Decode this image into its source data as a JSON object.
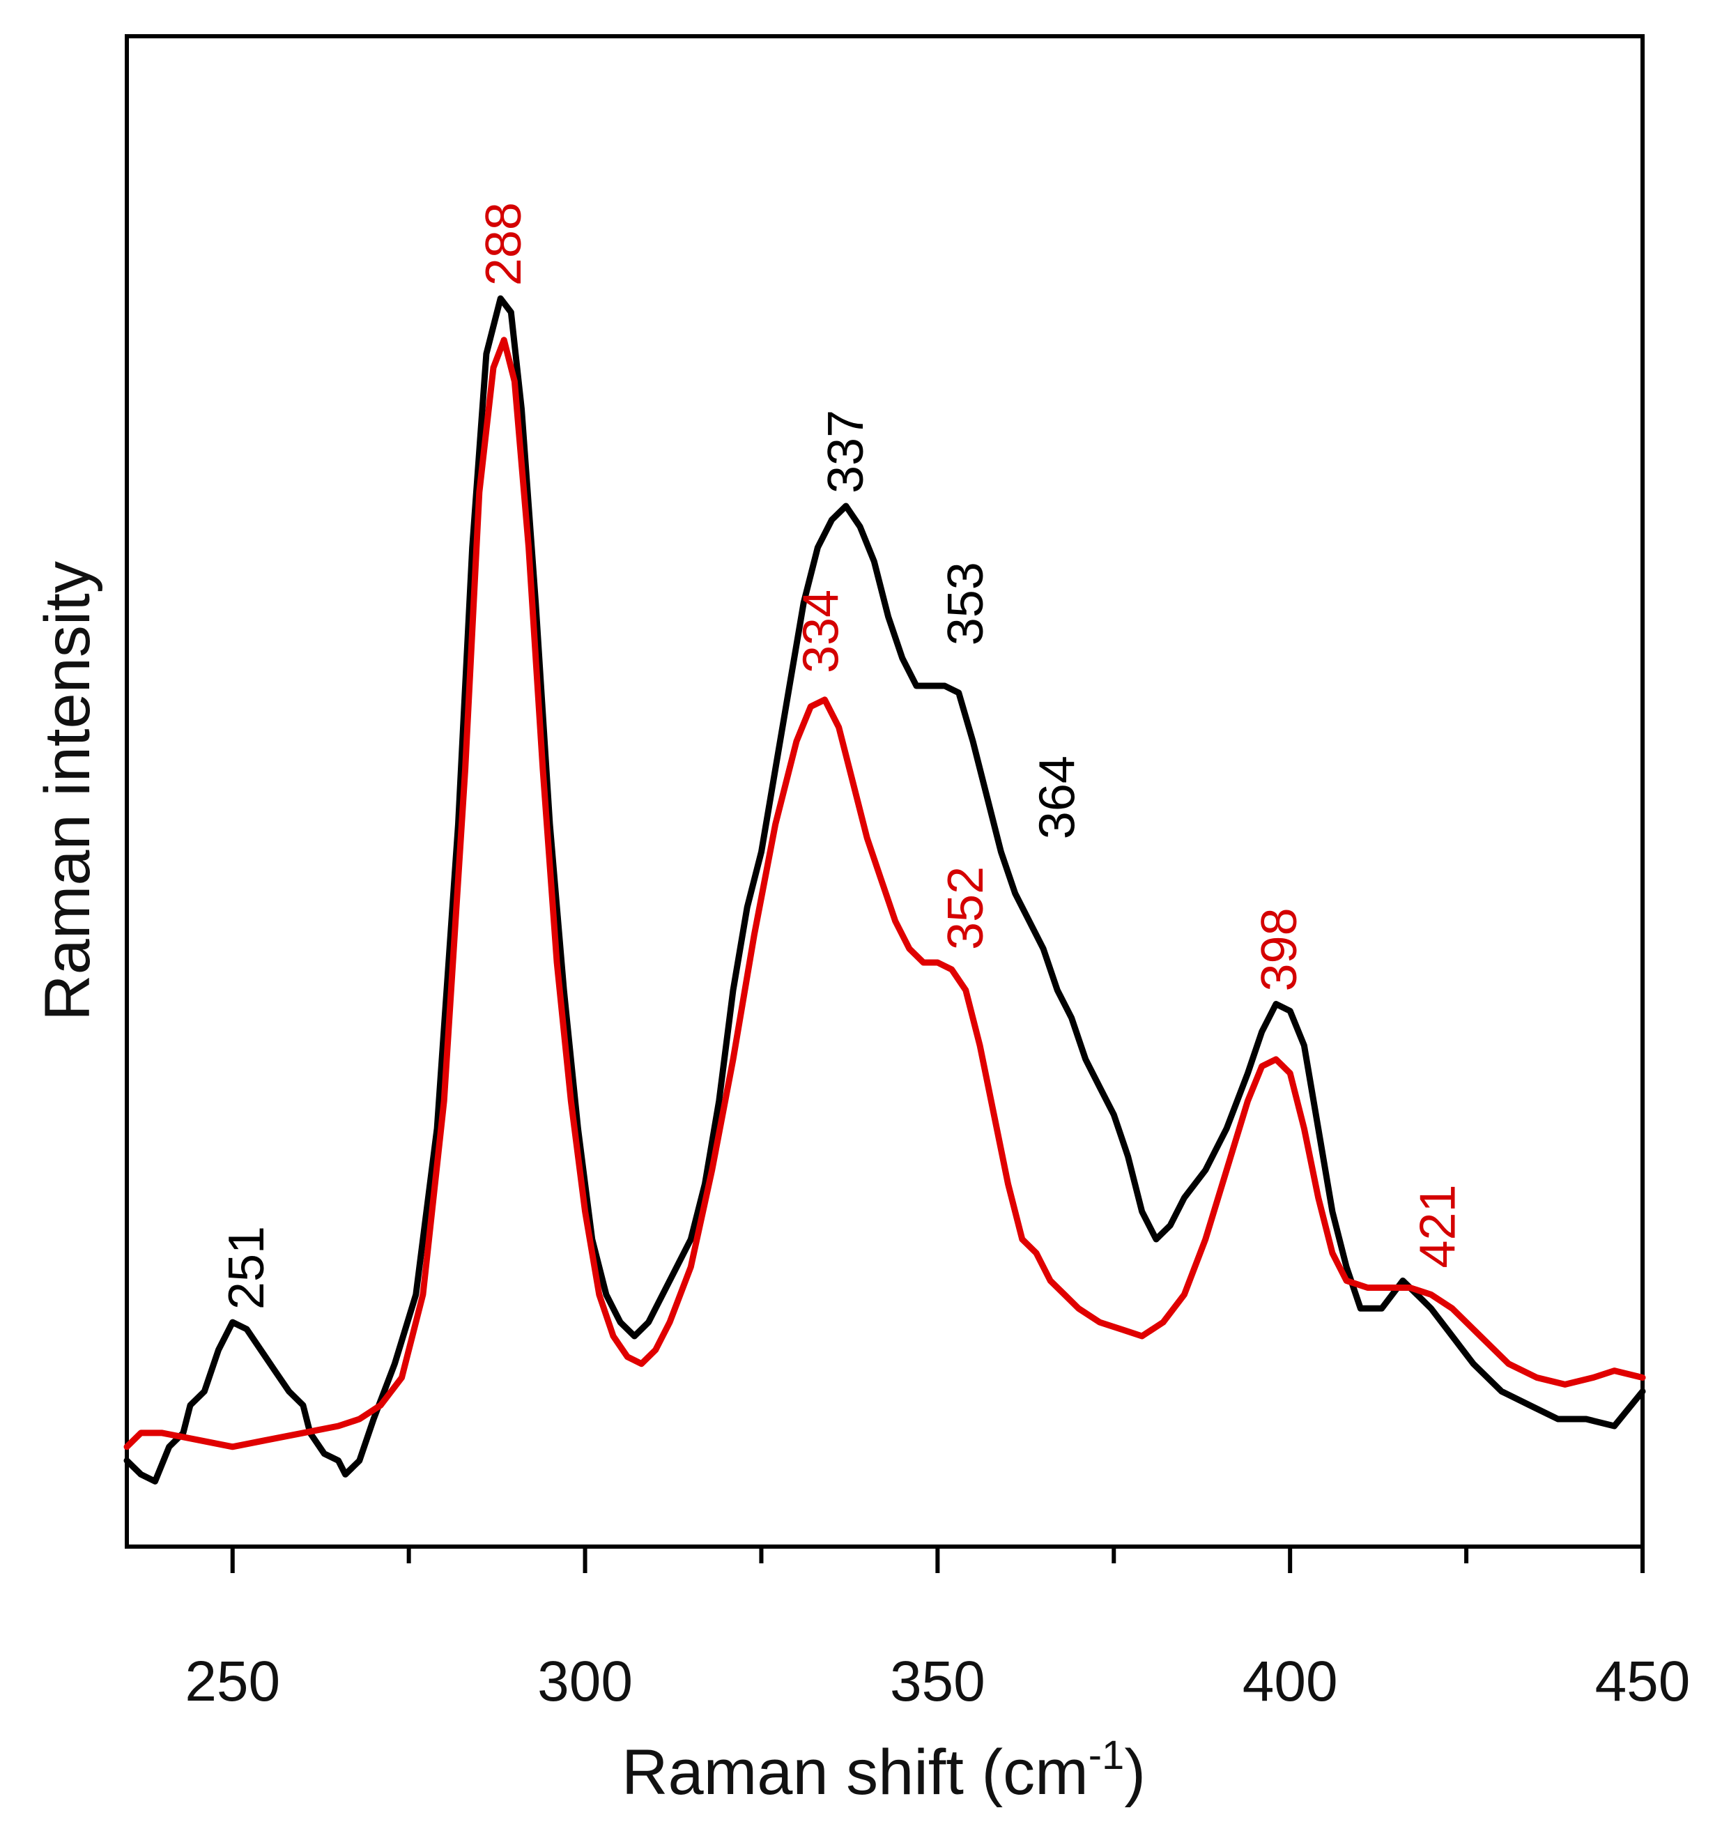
{
  "chart_data": {
    "type": "line",
    "title": "",
    "xlabel": "Raman shift (cm",
    "xlabel_sup": "-1",
    "xlabel_close": ")",
    "ylabel": "Raman intensity",
    "xlim": [
      235,
      450
    ],
    "ylim": [
      0,
      100
    ],
    "x_ticks": [
      250,
      300,
      350,
      400,
      450
    ],
    "x_tick_labels": [
      "250",
      "300",
      "350",
      "400",
      "450"
    ],
    "x_minor_ticks": [
      275,
      325,
      375,
      425
    ],
    "y_ticks": [],
    "grid": false,
    "legend": "none",
    "series": [
      {
        "name": "black spectrum",
        "color": "#000000",
        "points": [
          [
            235,
            4
          ],
          [
            237,
            3
          ],
          [
            239,
            2.5
          ],
          [
            241,
            5
          ],
          [
            243,
            6
          ],
          [
            244,
            8
          ],
          [
            246,
            9
          ],
          [
            248,
            12
          ],
          [
            250,
            14
          ],
          [
            252,
            13.5
          ],
          [
            254,
            12
          ],
          [
            256,
            10.5
          ],
          [
            258,
            9
          ],
          [
            260,
            8
          ],
          [
            261,
            6
          ],
          [
            263,
            4.5
          ],
          [
            265,
            4
          ],
          [
            266,
            3
          ],
          [
            268,
            4
          ],
          [
            270,
            7
          ],
          [
            273,
            11
          ],
          [
            276,
            16
          ],
          [
            279,
            28
          ],
          [
            282,
            50
          ],
          [
            284,
            70
          ],
          [
            286,
            84
          ],
          [
            288,
            88
          ],
          [
            289.5,
            87
          ],
          [
            291,
            80
          ],
          [
            293,
            66
          ],
          [
            295,
            50
          ],
          [
            297,
            38
          ],
          [
            299,
            28
          ],
          [
            301,
            20
          ],
          [
            303,
            16
          ],
          [
            305,
            14
          ],
          [
            307,
            13
          ],
          [
            309,
            14
          ],
          [
            311,
            16
          ],
          [
            313,
            18
          ],
          [
            315,
            20
          ],
          [
            317,
            24
          ],
          [
            319,
            30
          ],
          [
            321,
            38
          ],
          [
            323,
            44
          ],
          [
            325,
            48
          ],
          [
            327,
            54
          ],
          [
            329,
            60
          ],
          [
            331,
            66
          ],
          [
            333,
            70
          ],
          [
            335,
            72
          ],
          [
            337,
            73
          ],
          [
            339,
            71.5
          ],
          [
            341,
            69
          ],
          [
            343,
            65
          ],
          [
            345,
            62
          ],
          [
            347,
            60
          ],
          [
            349,
            60
          ],
          [
            351,
            60
          ],
          [
            353,
            59.5
          ],
          [
            355,
            56
          ],
          [
            357,
            52
          ],
          [
            359,
            48
          ],
          [
            361,
            45
          ],
          [
            363,
            43
          ],
          [
            365,
            41
          ],
          [
            367,
            38
          ],
          [
            369,
            36
          ],
          [
            371,
            33
          ],
          [
            373,
            31
          ],
          [
            375,
            29
          ],
          [
            377,
            26
          ],
          [
            379,
            22
          ],
          [
            381,
            20
          ],
          [
            383,
            21
          ],
          [
            385,
            23
          ],
          [
            388,
            25
          ],
          [
            391,
            28
          ],
          [
            394,
            32
          ],
          [
            396,
            35
          ],
          [
            398,
            37
          ],
          [
            400,
            36.5
          ],
          [
            402,
            34
          ],
          [
            404,
            28
          ],
          [
            406,
            22
          ],
          [
            408,
            18
          ],
          [
            410,
            15
          ],
          [
            413,
            15
          ],
          [
            416,
            17
          ],
          [
            418,
            16
          ],
          [
            420,
            15
          ],
          [
            423,
            13
          ],
          [
            426,
            11
          ],
          [
            430,
            9
          ],
          [
            434,
            8
          ],
          [
            438,
            7
          ],
          [
            442,
            7
          ],
          [
            446,
            6.5
          ],
          [
            450,
            9
          ]
        ]
      },
      {
        "name": "red spectrum",
        "color": "#e00000",
        "points": [
          [
            235,
            5
          ],
          [
            237,
            6
          ],
          [
            240,
            6
          ],
          [
            245,
            5.5
          ],
          [
            250,
            5
          ],
          [
            255,
            5.5
          ],
          [
            260,
            6
          ],
          [
            265,
            6.5
          ],
          [
            268,
            7
          ],
          [
            271,
            8
          ],
          [
            274,
            10
          ],
          [
            277,
            16
          ],
          [
            280,
            30
          ],
          [
            283,
            54
          ],
          [
            285,
            74
          ],
          [
            287,
            83
          ],
          [
            288.5,
            85
          ],
          [
            290,
            82
          ],
          [
            292,
            70
          ],
          [
            294,
            54
          ],
          [
            296,
            40
          ],
          [
            298,
            30
          ],
          [
            300,
            22
          ],
          [
            302,
            16
          ],
          [
            304,
            13
          ],
          [
            306,
            11.5
          ],
          [
            308,
            11
          ],
          [
            310,
            12
          ],
          [
            312,
            14
          ],
          [
            315,
            18
          ],
          [
            318,
            25
          ],
          [
            321,
            33
          ],
          [
            324,
            42
          ],
          [
            327,
            50
          ],
          [
            330,
            56
          ],
          [
            332,
            58.5
          ],
          [
            334,
            59
          ],
          [
            336,
            57
          ],
          [
            338,
            53
          ],
          [
            340,
            49
          ],
          [
            342,
            46
          ],
          [
            344,
            43
          ],
          [
            346,
            41
          ],
          [
            348,
            40
          ],
          [
            350,
            40
          ],
          [
            352,
            39.5
          ],
          [
            354,
            38
          ],
          [
            356,
            34
          ],
          [
            358,
            29
          ],
          [
            360,
            24
          ],
          [
            362,
            20
          ],
          [
            364,
            19
          ],
          [
            366,
            17
          ],
          [
            368,
            16
          ],
          [
            370,
            15
          ],
          [
            373,
            14
          ],
          [
            376,
            13.5
          ],
          [
            379,
            13
          ],
          [
            382,
            14
          ],
          [
            385,
            16
          ],
          [
            388,
            20
          ],
          [
            391,
            25
          ],
          [
            394,
            30
          ],
          [
            396,
            32.5
          ],
          [
            398,
            33
          ],
          [
            400,
            32
          ],
          [
            402,
            28
          ],
          [
            404,
            23
          ],
          [
            406,
            19
          ],
          [
            408,
            17
          ],
          [
            411,
            16.5
          ],
          [
            414,
            16.5
          ],
          [
            417,
            16.5
          ],
          [
            420,
            16
          ],
          [
            423,
            15
          ],
          [
            427,
            13
          ],
          [
            431,
            11
          ],
          [
            435,
            10
          ],
          [
            439,
            9.5
          ],
          [
            443,
            10
          ],
          [
            446,
            10.5
          ],
          [
            450,
            10
          ]
        ]
      }
    ],
    "annotations": [
      {
        "text": "251",
        "x": 252,
        "y": 14,
        "color": "#000000"
      },
      {
        "text": "288",
        "x": 288.5,
        "y": 88,
        "color": "#d40000"
      },
      {
        "text": "337",
        "x": 337,
        "y": 73,
        "color": "#000000"
      },
      {
        "text": "353",
        "x": 354,
        "y": 62,
        "color": "#000000"
      },
      {
        "text": "334",
        "x": 333.5,
        "y": 60,
        "color": "#d40000"
      },
      {
        "text": "364",
        "x": 367,
        "y": 48,
        "color": "#000000"
      },
      {
        "text": "352",
        "x": 354,
        "y": 40,
        "color": "#d40000"
      },
      {
        "text": "398",
        "x": 398.5,
        "y": 37,
        "color": "#d40000"
      },
      {
        "text": "421",
        "x": 421,
        "y": 17,
        "color": "#d40000"
      }
    ]
  }
}
